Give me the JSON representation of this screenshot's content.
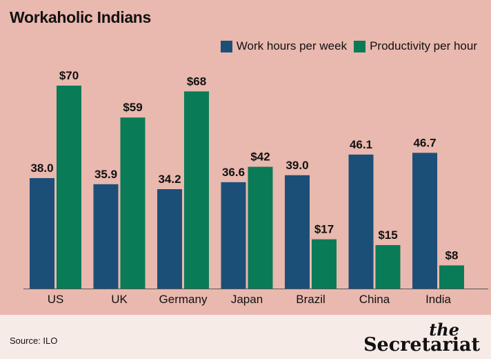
{
  "title": "Workaholic Indians",
  "legend": [
    {
      "label": "Work hours per week",
      "color": "#1b4f78"
    },
    {
      "label": "Productivity per hour",
      "color": "#0a7b57"
    }
  ],
  "footer": {
    "source": "Source: ILO",
    "logo_top": "the",
    "logo_name": "Secretariat"
  },
  "chart_data": {
    "type": "bar",
    "title": "Workaholic Indians",
    "xlabel": "",
    "ylabel": "",
    "categories": [
      "US",
      "UK",
      "Germany",
      "Japan",
      "Brazil",
      "China",
      "India"
    ],
    "series": [
      {
        "name": "Work hours per week",
        "color": "#1b4f78",
        "values": [
          38.0,
          35.9,
          34.2,
          36.6,
          39.0,
          46.1,
          46.7
        ],
        "labels": [
          "38.0",
          "35.9",
          "34.2",
          "36.6",
          "39.0",
          "46.1",
          "46.7"
        ]
      },
      {
        "name": "Productivity per hour",
        "color": "#0a7b57",
        "values": [
          70,
          59,
          68,
          42,
          17,
          15,
          8
        ],
        "labels": [
          "$70",
          "$59",
          "$68",
          "$42",
          "$17",
          "$15",
          "$8"
        ]
      }
    ],
    "grid": false,
    "legend_position": "top-right"
  }
}
